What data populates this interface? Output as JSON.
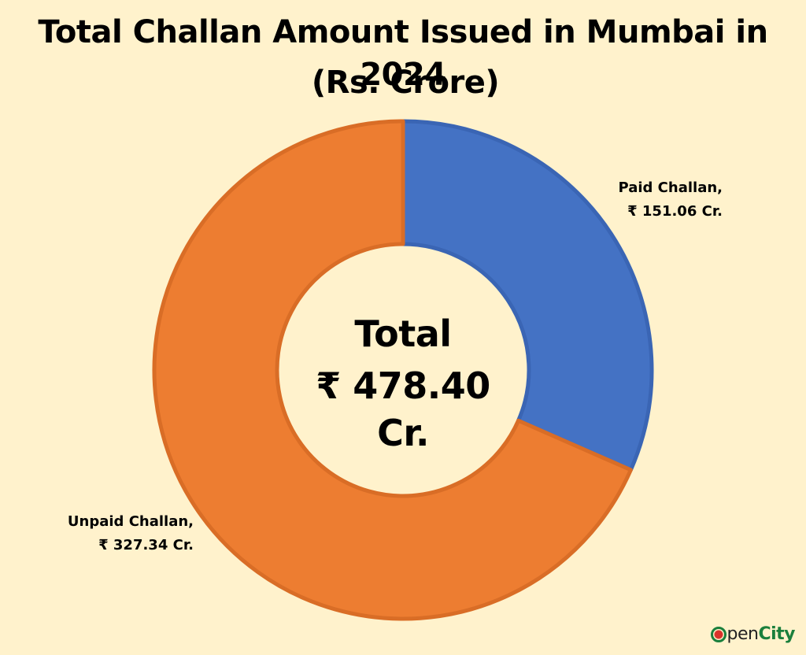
{
  "chart_data": {
    "type": "pie",
    "style": "donut",
    "title": "Total Challan Amount Issued in Mumbai in 2024",
    "subtitle": "(Rs. Crore)",
    "center_title": "Total",
    "center_value": "₹ 478.40 Cr.",
    "total": 478.4,
    "slices": [
      {
        "name": "Paid Challan,",
        "value": 151.06,
        "value_label": "₹ 151.06 Cr.",
        "color": "#4472c4",
        "border": "#3a65b4"
      },
      {
        "name": "Unpaid Challan,",
        "value": 327.34,
        "value_label": "₹ 327.34 Cr.",
        "color": "#ed7d31",
        "border": "#d96d26"
      }
    ],
    "legend": "none"
  },
  "logo": {
    "part1": "pen",
    "part2": "City",
    "icon": "opencity-o-icon"
  }
}
